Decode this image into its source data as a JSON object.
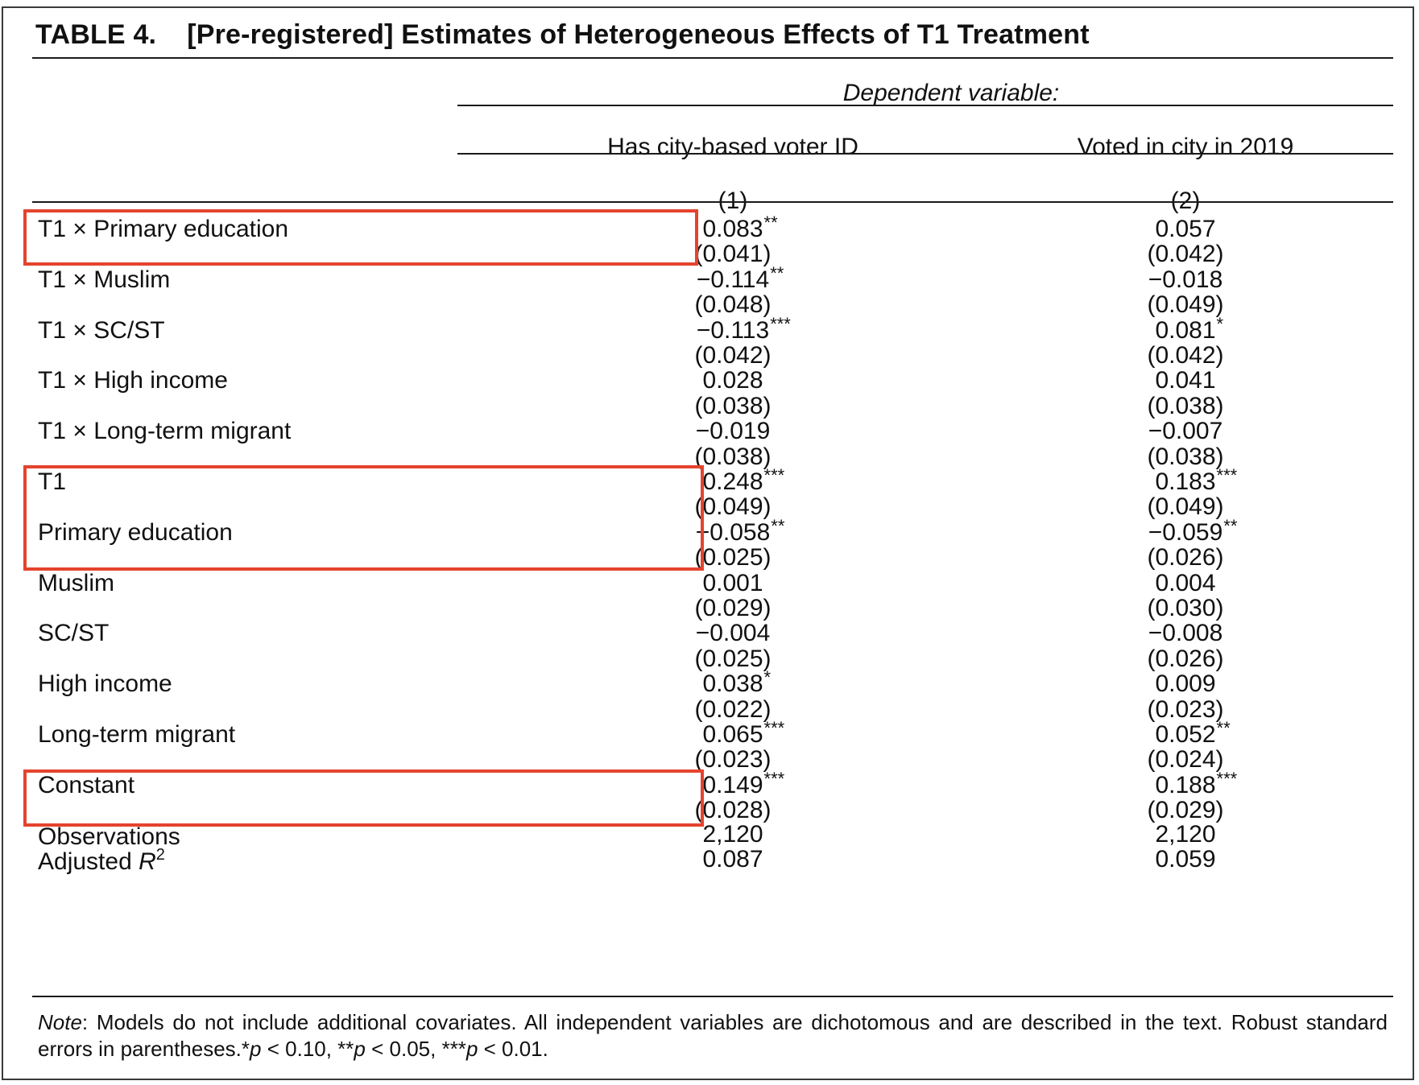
{
  "title": {
    "number": "TABLE 4.",
    "text": "[Pre-registered] Estimates of Heterogeneous Effects of T1 Treatment"
  },
  "header": {
    "dependent_variable": "Dependent variable:",
    "columns": [
      "Has city-based voter ID",
      "Voted in city in 2019"
    ],
    "column_numbers": [
      "(1)",
      "(2)"
    ]
  },
  "rows": [
    {
      "label_parts": [
        "T1 ",
        "×",
        " Primary education"
      ],
      "c1": {
        "value": "0.083",
        "stars": "**",
        "se": "(0.041)"
      },
      "c2": {
        "value": "0.057",
        "stars": "",
        "se": "(0.042)"
      }
    },
    {
      "label_parts": [
        "T1 ",
        "×",
        " Muslim"
      ],
      "c1": {
        "value": "−0.114",
        "stars": "**",
        "se": "(0.048)"
      },
      "c2": {
        "value": "−0.018",
        "stars": "",
        "se": "(0.049)"
      }
    },
    {
      "label_parts": [
        "T1 ",
        "×",
        " SC/ST"
      ],
      "c1": {
        "value": "−0.113",
        "stars": "***",
        "se": "(0.042)"
      },
      "c2": {
        "value": "0.081",
        "stars": "*",
        "se": "(0.042)"
      }
    },
    {
      "label_parts": [
        "T1 ",
        "×",
        " High income"
      ],
      "c1": {
        "value": "0.028",
        "stars": "",
        "se": "(0.038)"
      },
      "c2": {
        "value": "0.041",
        "stars": "",
        "se": "(0.038)"
      }
    },
    {
      "label_parts": [
        "T1 ",
        "×",
        " Long-term migrant"
      ],
      "c1": {
        "value": "−0.019",
        "stars": "",
        "se": "(0.038)"
      },
      "c2": {
        "value": "−0.007",
        "stars": "",
        "se": "(0.038)"
      }
    },
    {
      "label_parts": [
        "T1",
        "",
        ""
      ],
      "c1": {
        "value": "0.248",
        "stars": "***",
        "se": "(0.049)"
      },
      "c2": {
        "value": "0.183",
        "stars": "***",
        "se": "(0.049)"
      }
    },
    {
      "label_parts": [
        "Primary education",
        "",
        ""
      ],
      "c1": {
        "value": "−0.058",
        "stars": "**",
        "se": "(0.025)"
      },
      "c2": {
        "value": "−0.059",
        "stars": "**",
        "se": "(0.026)"
      }
    },
    {
      "label_parts": [
        "Muslim",
        "",
        ""
      ],
      "c1": {
        "value": "0.001",
        "stars": "",
        "se": "(0.029)"
      },
      "c2": {
        "value": "0.004",
        "stars": "",
        "se": "(0.030)"
      }
    },
    {
      "label_parts": [
        "SC/ST",
        "",
        ""
      ],
      "c1": {
        "value": "−0.004",
        "stars": "",
        "se": "(0.025)"
      },
      "c2": {
        "value": "−0.008",
        "stars": "",
        "se": "(0.026)"
      }
    },
    {
      "label_parts": [
        "High income",
        "",
        ""
      ],
      "c1": {
        "value": "0.038",
        "stars": "*",
        "se": "(0.022)"
      },
      "c2": {
        "value": "0.009",
        "stars": "",
        "se": "(0.023)"
      }
    },
    {
      "label_parts": [
        "Long-term migrant",
        "",
        ""
      ],
      "c1": {
        "value": "0.065",
        "stars": "***",
        "se": "(0.023)"
      },
      "c2": {
        "value": "0.052",
        "stars": "**",
        "se": "(0.024)"
      }
    },
    {
      "label_parts": [
        "Constant",
        "",
        ""
      ],
      "c1": {
        "value": "0.149",
        "stars": "***",
        "se": "(0.028)"
      },
      "c2": {
        "value": "0.188",
        "stars": "***",
        "se": "(0.029)"
      }
    }
  ],
  "stats": [
    {
      "label": "Observations",
      "label_sup": "",
      "c1": "2,120",
      "c2": "2,120"
    },
    {
      "label": "Adjusted R",
      "label_sup": "2",
      "c1": "0.087",
      "c2": "0.059"
    }
  ],
  "note": {
    "lead": "Note",
    "body": ": Models do not include additional covariates. All independent variables are dichotomous and are described in the text. Robust standard errors in parentheses.",
    "sig_parts": [
      "*",
      "p",
      " < 0.10, **",
      "p",
      " < 0.05, ***",
      "p",
      " < 0.01."
    ]
  },
  "highlight_color": "#e5432d"
}
